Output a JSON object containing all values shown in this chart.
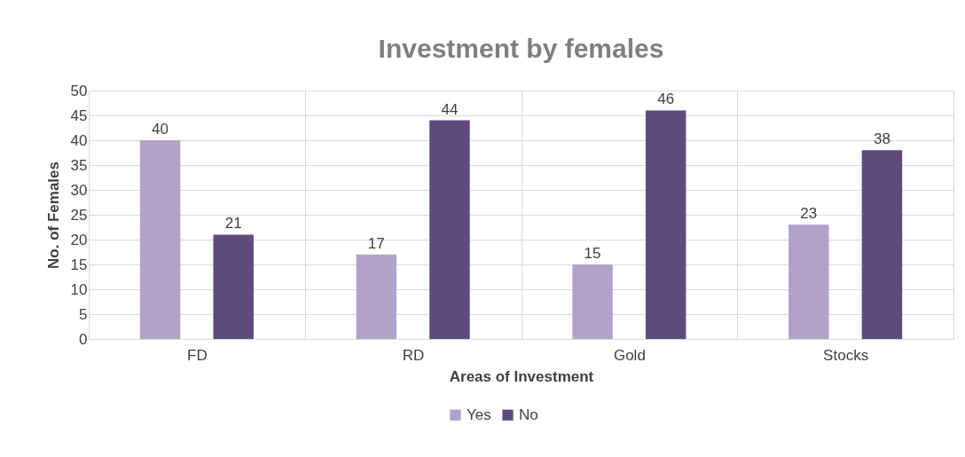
{
  "chart_data": {
    "type": "bar",
    "title": "Investment by females",
    "xlabel": "Areas of Investment",
    "ylabel": "No. of Females",
    "categories": [
      "FD",
      "RD",
      "Gold",
      "Stocks"
    ],
    "series": [
      {
        "name": "Yes",
        "color": "#b1a2c9",
        "values": [
          40,
          17,
          15,
          23
        ]
      },
      {
        "name": "No",
        "color": "#5e4a7b",
        "values": [
          21,
          44,
          46,
          38
        ]
      }
    ],
    "ylim": [
      0,
      50
    ],
    "yticks": [
      0,
      5,
      10,
      15,
      20,
      25,
      30,
      35,
      40,
      45,
      50
    ],
    "grid": true,
    "legend": "bottom",
    "data_labels": true
  }
}
